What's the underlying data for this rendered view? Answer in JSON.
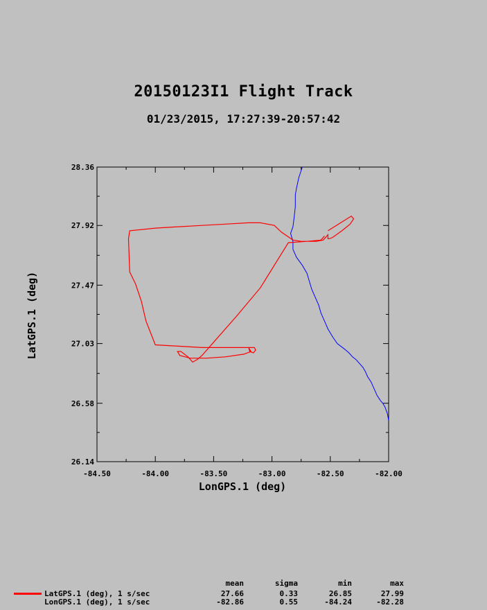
{
  "title": "20150123I1 Flight Track",
  "subtitle": "01/23/2015, 17:27:39-20:57:42",
  "colors": {
    "track": "#ff0000",
    "coast": "#0000ff",
    "background": "#c0c0c0"
  },
  "chart_data": {
    "type": "line",
    "xlabel": "LonGPS.1 (deg)",
    "ylabel": "LatGPS.1 (deg)",
    "xlim": [
      -84.5,
      -82.0
    ],
    "ylim": [
      26.14,
      28.36
    ],
    "x_ticks": [
      "-84.50",
      "-84.00",
      "-83.50",
      "-83.00",
      "-82.50",
      "-82.00"
    ],
    "y_ticks": [
      "26.14",
      "26.58",
      "27.03",
      "27.47",
      "27.92",
      "28.36"
    ],
    "grid": false,
    "series": [
      {
        "name": "LatGPS.1 (deg), 1 s/sec",
        "color": "#ff0000",
        "x": [
          -82.52,
          -82.32,
          -82.3,
          -82.33,
          -82.4,
          -82.48,
          -82.51,
          -82.52,
          -82.52,
          -82.56,
          -82.62,
          -82.68,
          -82.75,
          -82.82,
          -82.92,
          -82.98,
          -83.1,
          -83.2,
          -83.4,
          -83.6,
          -83.8,
          -84.0,
          -84.22,
          -84.23,
          -84.22,
          -84.17,
          -84.12,
          -84.08,
          -84.0,
          -83.8,
          -83.6,
          -83.4,
          -83.2,
          -83.15,
          -83.14,
          -83.16,
          -83.19,
          -83.2,
          -83.18,
          -83.24,
          -83.4,
          -83.56,
          -83.7,
          -83.79,
          -83.81,
          -83.78,
          -83.72,
          -83.68,
          -83.64,
          -83.6,
          -83.5,
          -83.3,
          -83.1,
          -82.86,
          -82.7,
          -82.58,
          -82.55
        ],
        "y": [
          27.88,
          27.99,
          27.97,
          27.93,
          27.88,
          27.83,
          27.82,
          27.82,
          27.85,
          27.81,
          27.8,
          27.8,
          27.8,
          27.81,
          27.87,
          27.92,
          27.94,
          27.94,
          27.93,
          27.92,
          27.91,
          27.9,
          27.88,
          27.82,
          27.57,
          27.48,
          27.35,
          27.2,
          27.02,
          27.01,
          27.0,
          27.0,
          27.0,
          27.0,
          26.98,
          26.96,
          26.97,
          27.0,
          26.97,
          26.95,
          26.93,
          26.92,
          26.92,
          26.94,
          26.97,
          26.97,
          26.93,
          26.89,
          26.91,
          26.94,
          27.04,
          27.24,
          27.45,
          27.79,
          27.8,
          27.81,
          27.84
        ]
      }
    ],
    "coastline": {
      "name": "coastline",
      "color": "#0000ff",
      "x": [
        -82.74,
        -82.77,
        -82.79,
        -82.8,
        -82.8,
        -82.81,
        -82.82,
        -82.84,
        -82.82,
        -82.82,
        -82.79,
        -82.74,
        -82.7,
        -82.68,
        -82.66,
        -82.63,
        -82.6,
        -82.58,
        -82.55,
        -82.52,
        -82.48,
        -82.44,
        -82.38,
        -82.34,
        -82.31,
        -82.28,
        -82.26,
        -82.22,
        -82.2,
        -82.18,
        -82.15,
        -82.12,
        -82.1,
        -82.07,
        -82.05,
        -82.03,
        -82.01,
        -82.0
      ],
      "y": [
        28.36,
        28.28,
        28.2,
        28.15,
        28.06,
        27.98,
        27.91,
        27.86,
        27.8,
        27.74,
        27.68,
        27.62,
        27.56,
        27.5,
        27.44,
        27.38,
        27.32,
        27.26,
        27.2,
        27.14,
        27.08,
        27.03,
        26.99,
        26.96,
        26.93,
        26.91,
        26.89,
        26.85,
        26.82,
        26.78,
        26.74,
        26.68,
        26.64,
        26.6,
        26.58,
        26.55,
        26.5,
        26.45
      ]
    }
  },
  "stats": {
    "headers": [
      "mean",
      "sigma",
      "min",
      "max"
    ],
    "rows": [
      {
        "name": "LatGPS.1 (deg), 1 s/sec",
        "mean": "27.66",
        "sigma": "0.33",
        "min": "26.85",
        "max": "27.99"
      },
      {
        "name": "LonGPS.1 (deg), 1 s/sec",
        "mean": "-82.86",
        "sigma": "0.55",
        "min": "-84.24",
        "max": "-82.28"
      }
    ]
  }
}
